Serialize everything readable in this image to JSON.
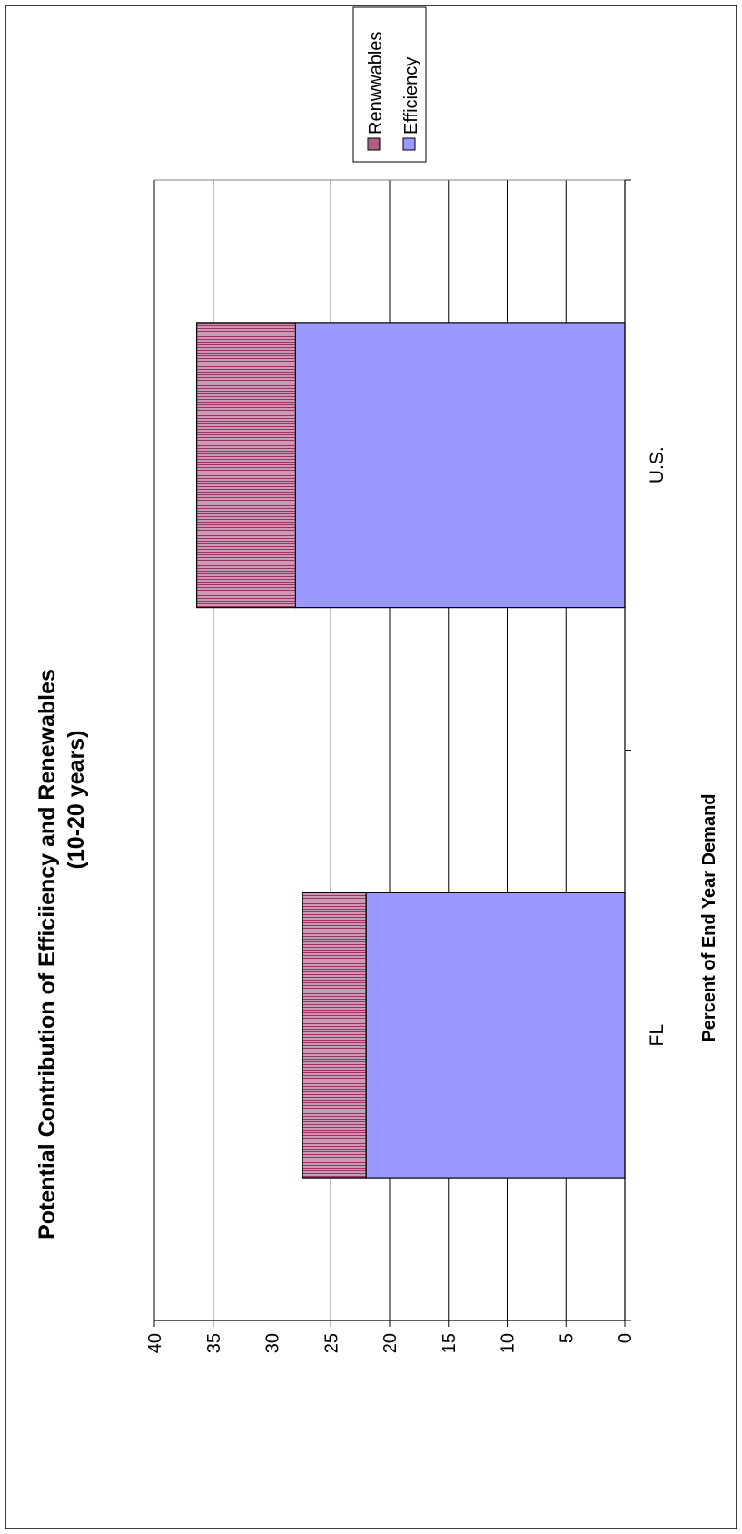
{
  "chart_data": {
    "type": "bar",
    "stacked": true,
    "orientation": "rotated-90",
    "title": "Potential Contribution of Efficiiency and Renewables",
    "subtitle": "(10-20 years)",
    "ylabel": "Percent of End Year Demand",
    "xlabel": "",
    "categories": [
      "FL",
      "U.S."
    ],
    "series": [
      {
        "name": "Efficiency",
        "values": [
          22,
          28
        ],
        "color": "#9999ff",
        "pattern": "solid"
      },
      {
        "name": "Renwwables",
        "values": [
          5.4,
          8.4
        ],
        "color": "#993366",
        "pattern": "vertical-stripes"
      }
    ],
    "ylim": [
      0,
      40
    ],
    "yticks": [
      "0",
      "5",
      "10",
      "15",
      "20",
      "25",
      "30",
      "35",
      "40"
    ],
    "grid": true,
    "legend_position": "top-right",
    "legend_entries": [
      "Renwwables",
      "Efficiency"
    ]
  }
}
